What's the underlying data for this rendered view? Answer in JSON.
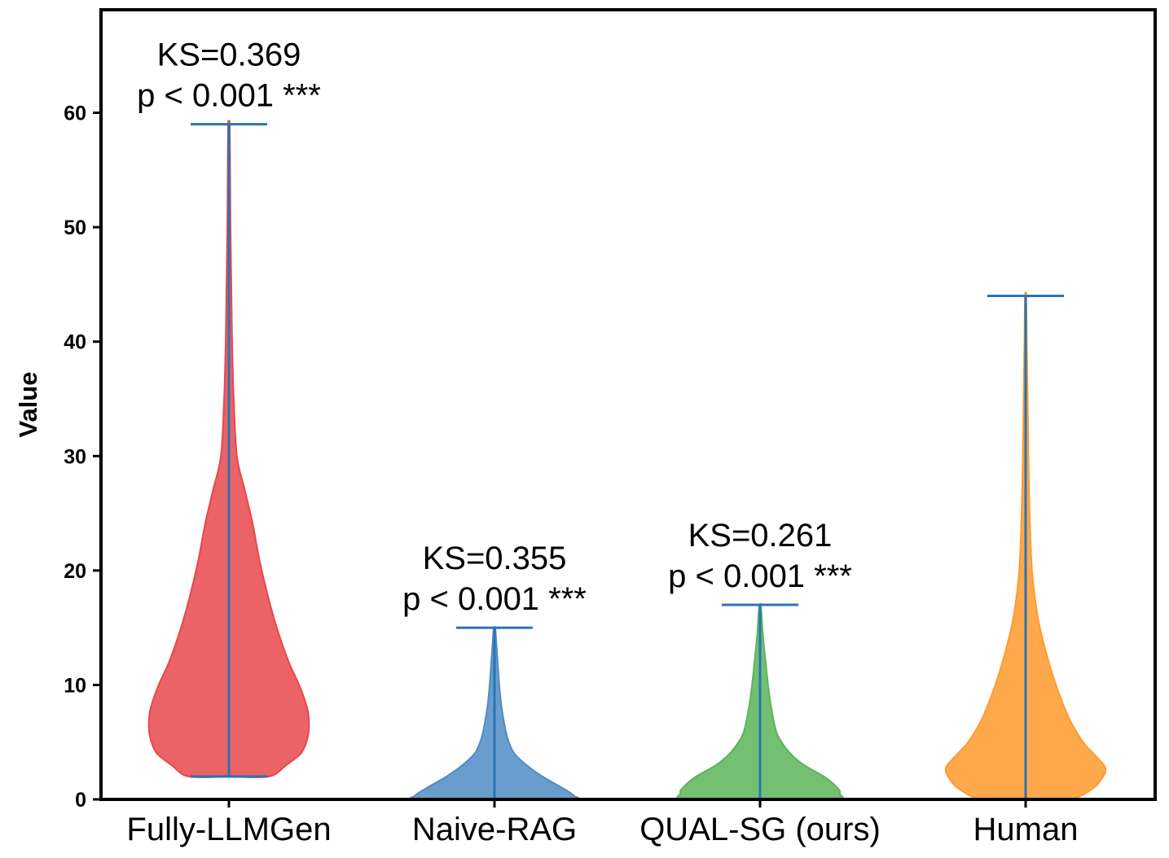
{
  "chart_data": {
    "type": "violin",
    "ylabel": "Value",
    "xlabel": "",
    "ylim": [
      0,
      69
    ],
    "yticks": [
      0,
      10,
      20,
      30,
      40,
      50,
      60
    ],
    "categories": [
      "Fully-LLMGen",
      "Naive-RAG",
      "QUAL-SG (ours)",
      "Human"
    ],
    "colors": {
      "Fully-LLMGen": "#e8474c",
      "Naive-RAG": "#4f8cc4",
      "QUAL-SG (ours)": "#5ab55a",
      "Human": "#ff9a2e",
      "whisker": "#2a74b2"
    },
    "series": [
      {
        "name": "Fully-LLMGen",
        "min": 2,
        "max": 59,
        "density_profile": [
          [
            2,
            0.5
          ],
          [
            3,
            0.72
          ],
          [
            4,
            0.9
          ],
          [
            5,
            0.97
          ],
          [
            6,
            1.0
          ],
          [
            7,
            1.0
          ],
          [
            8,
            0.98
          ],
          [
            10,
            0.88
          ],
          [
            12,
            0.75
          ],
          [
            15,
            0.6
          ],
          [
            18,
            0.48
          ],
          [
            21,
            0.38
          ],
          [
            24,
            0.3
          ],
          [
            27,
            0.2
          ],
          [
            30,
            0.1
          ],
          [
            35,
            0.06
          ],
          [
            40,
            0.04
          ],
          [
            45,
            0.03
          ],
          [
            50,
            0.02
          ],
          [
            55,
            0.015
          ],
          [
            59,
            0.01
          ]
        ],
        "annotation": {
          "ks": "KS=0.369",
          "p": "p < 0.001 ***"
        }
      },
      {
        "name": "Naive-RAG",
        "min": 0,
        "max": 15,
        "density_profile": [
          [
            0,
            0.98
          ],
          [
            0.3,
            1.0
          ],
          [
            1,
            0.85
          ],
          [
            2,
            0.6
          ],
          [
            3,
            0.4
          ],
          [
            4,
            0.25
          ],
          [
            5,
            0.18
          ],
          [
            6,
            0.14
          ],
          [
            8,
            0.09
          ],
          [
            10,
            0.06
          ],
          [
            12,
            0.04
          ],
          [
            14,
            0.02
          ],
          [
            15,
            0.01
          ]
        ],
        "annotation": {
          "ks": "KS=0.355",
          "p": "p < 0.001 ***"
        }
      },
      {
        "name": "QUAL-SG (ours)",
        "min": 0,
        "max": 17,
        "density_profile": [
          [
            0,
            0.95
          ],
          [
            0.5,
            1.0
          ],
          [
            1,
            0.97
          ],
          [
            2,
            0.8
          ],
          [
            3,
            0.55
          ],
          [
            4,
            0.38
          ],
          [
            5,
            0.27
          ],
          [
            6,
            0.2
          ],
          [
            8,
            0.14
          ],
          [
            10,
            0.1
          ],
          [
            12,
            0.07
          ],
          [
            14,
            0.04
          ],
          [
            16,
            0.02
          ],
          [
            17,
            0.01
          ]
        ],
        "annotation": {
          "ks": "KS=0.261",
          "p": "p < 0.001 ***"
        }
      },
      {
        "name": "Human",
        "min": 0,
        "max": 44,
        "density_profile": [
          [
            0,
            0.55
          ],
          [
            1,
            0.85
          ],
          [
            2,
            0.97
          ],
          [
            2.5,
            1.0
          ],
          [
            3,
            0.98
          ],
          [
            4,
            0.85
          ],
          [
            5,
            0.72
          ],
          [
            7,
            0.55
          ],
          [
            10,
            0.38
          ],
          [
            13,
            0.25
          ],
          [
            16,
            0.15
          ],
          [
            20,
            0.08
          ],
          [
            25,
            0.05
          ],
          [
            30,
            0.035
          ],
          [
            35,
            0.025
          ],
          [
            40,
            0.015
          ],
          [
            44,
            0.008
          ]
        ],
        "annotation": null
      }
    ]
  }
}
